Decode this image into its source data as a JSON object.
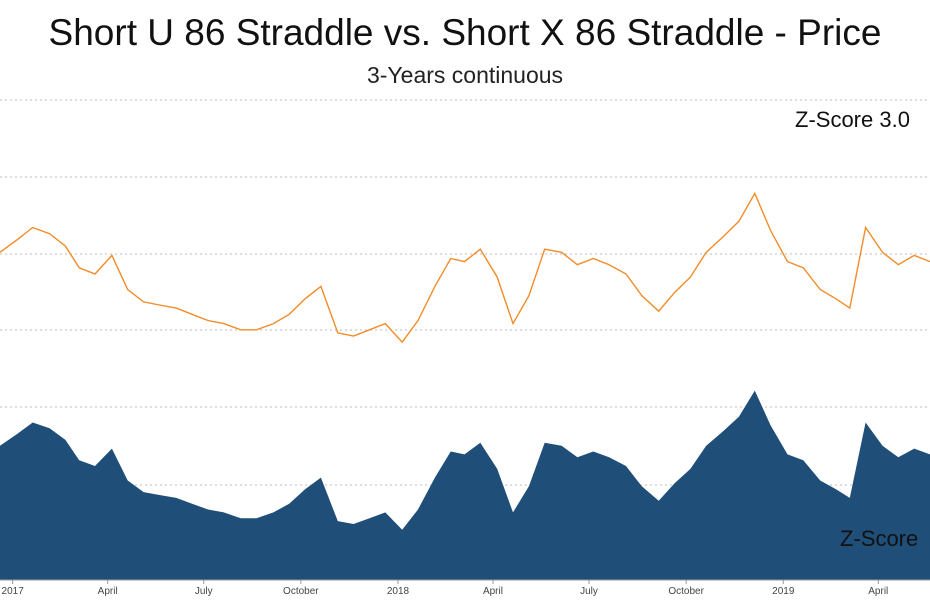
{
  "chart_data": {
    "type": "area",
    "title": "Short U 86 Straddle vs. Short X 86 Straddle - Price",
    "subtitle": "3-Years continuous",
    "x_tick_labels": [
      "2017",
      "April",
      "July",
      "October",
      "2018",
      "April",
      "July",
      "October",
      "2019",
      "April"
    ],
    "annotations": [
      "Z-Score 3.0",
      "Z-Score"
    ],
    "grid": "horizontal dotted",
    "colors": {
      "price_line": "#f28c28",
      "zscore_area": "#1f4e79"
    },
    "series": [
      {
        "kind": "line",
        "x": [
          "2016-12-20",
          "2017-01-05",
          "2017-01-20",
          "2017-02-05",
          "2017-02-20",
          "2017-03-05",
          "2017-03-20",
          "2017-04-05",
          "2017-04-20",
          "2017-05-05",
          "2017-05-20",
          "2017-06-05",
          "2017-06-20",
          "2017-07-05",
          "2017-07-20",
          "2017-08-05",
          "2017-08-20",
          "2017-09-05",
          "2017-09-20",
          "2017-10-05",
          "2017-10-20",
          "2017-11-05",
          "2017-11-20",
          "2017-12-05",
          "2017-12-20",
          "2018-01-05",
          "2018-01-20",
          "2018-02-05",
          "2018-02-20",
          "2018-03-05",
          "2018-03-20",
          "2018-04-05",
          "2018-04-20",
          "2018-05-05",
          "2018-05-20",
          "2018-06-05",
          "2018-06-20",
          "2018-07-05",
          "2018-07-20",
          "2018-08-05",
          "2018-08-20",
          "2018-09-05",
          "2018-09-20",
          "2018-10-05",
          "2018-10-20",
          "2018-11-05",
          "2018-11-20",
          "2018-12-05",
          "2018-12-20",
          "2019-01-05",
          "2019-01-20",
          "2019-02-05",
          "2019-02-20",
          "2019-03-05",
          "2019-03-20",
          "2019-04-05",
          "2019-04-20",
          "2019-05-05",
          "2019-05-20"
        ],
        "y": [
          1.7,
          2.1,
          2.5,
          2.3,
          1.9,
          1.2,
          1.0,
          1.6,
          0.5,
          0.1,
          0.0,
          -0.1,
          -0.3,
          -0.5,
          -0.6,
          -0.8,
          -0.8,
          -0.6,
          -0.3,
          0.2,
          0.6,
          -0.9,
          -1.0,
          -0.8,
          -0.6,
          -1.2,
          -0.5,
          0.6,
          1.5,
          1.4,
          1.8,
          0.9,
          -0.6,
          0.3,
          1.8,
          1.7,
          1.3,
          1.5,
          1.3,
          1.0,
          0.3,
          -0.2,
          0.4,
          0.9,
          1.7,
          2.2,
          2.7,
          3.6,
          2.4,
          1.4,
          1.2,
          0.5,
          0.2,
          -0.1,
          2.5,
          1.7,
          1.3,
          1.6,
          1.4
        ]
      },
      {
        "kind": "area",
        "x": [
          "2016-12-20",
          "2017-01-05",
          "2017-01-20",
          "2017-02-05",
          "2017-02-20",
          "2017-03-05",
          "2017-03-20",
          "2017-04-05",
          "2017-04-20",
          "2017-05-05",
          "2017-05-20",
          "2017-06-05",
          "2017-06-20",
          "2017-07-05",
          "2017-07-20",
          "2017-08-05",
          "2017-08-20",
          "2017-09-05",
          "2017-09-20",
          "2017-10-05",
          "2017-10-20",
          "2017-11-05",
          "2017-11-20",
          "2017-12-05",
          "2017-12-20",
          "2018-01-05",
          "2018-01-20",
          "2018-02-05",
          "2018-02-20",
          "2018-03-05",
          "2018-03-20",
          "2018-04-05",
          "2018-04-20",
          "2018-05-05",
          "2018-05-20",
          "2018-06-05",
          "2018-06-20",
          "2018-07-05",
          "2018-07-20",
          "2018-08-05",
          "2018-08-20",
          "2018-09-05",
          "2018-09-20",
          "2018-10-05",
          "2018-10-20",
          "2018-11-05",
          "2018-11-20",
          "2018-12-05",
          "2018-12-20",
          "2019-01-05",
          "2019-01-20",
          "2019-02-05",
          "2019-02-20",
          "2019-03-05",
          "2019-03-20",
          "2019-04-05",
          "2019-04-20",
          "2019-05-05",
          "2019-05-20"
        ],
        "y": [
          1.7,
          2.1,
          2.5,
          2.3,
          1.9,
          1.2,
          1.0,
          1.6,
          0.5,
          0.1,
          0.0,
          -0.1,
          -0.3,
          -0.5,
          -0.6,
          -0.8,
          -0.8,
          -0.6,
          -0.3,
          0.2,
          0.6,
          -0.9,
          -1.0,
          -0.8,
          -0.6,
          -1.2,
          -0.5,
          0.6,
          1.5,
          1.4,
          1.8,
          0.9,
          -0.6,
          0.3,
          1.8,
          1.7,
          1.3,
          1.5,
          1.3,
          1.0,
          0.3,
          -0.2,
          0.4,
          0.9,
          1.7,
          2.2,
          2.7,
          3.6,
          2.4,
          1.4,
          1.2,
          0.5,
          0.2,
          -0.1,
          2.5,
          1.7,
          1.3,
          1.6,
          1.4
        ]
      }
    ]
  }
}
